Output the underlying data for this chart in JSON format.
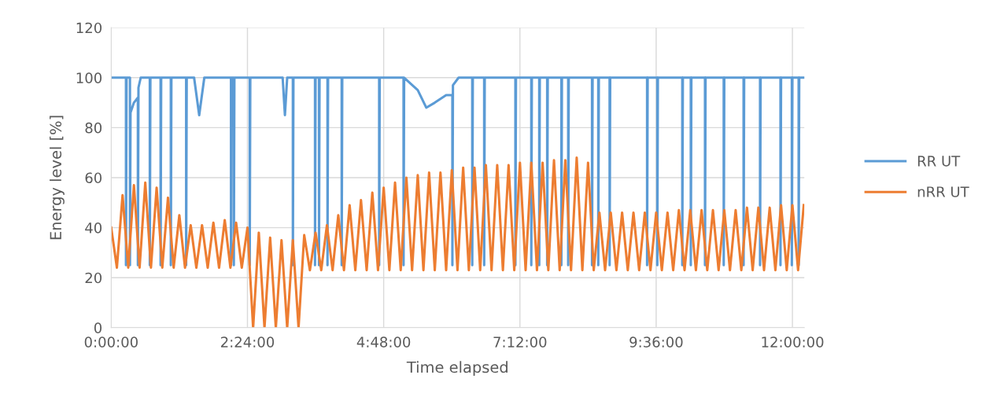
{
  "chart_data": {
    "type": "line",
    "xlabel": "Time elapsed",
    "ylabel": "Energy level [%]",
    "xlim": [
      0,
      12.21
    ],
    "xticks": [
      {
        "value": 0,
        "label": "0:00:00"
      },
      {
        "value": 2.4,
        "label": "2:24:00"
      },
      {
        "value": 4.8,
        "label": "4:48:00"
      },
      {
        "value": 7.2,
        "label": "7:12:00"
      },
      {
        "value": 9.6,
        "label": "9:36:00"
      },
      {
        "value": 12,
        "label": "12:00:00"
      }
    ],
    "ylim": [
      0,
      120
    ],
    "yticks": [
      0,
      20,
      40,
      60,
      80,
      100,
      120
    ],
    "grid": true,
    "legend": "right",
    "series": [
      {
        "name": "RR UT",
        "color": "#5b9bd5",
        "x": [
          0,
          0.26,
          0.26,
          0.27,
          0.33,
          0.33,
          0.34,
          0.4,
          0.47,
          0.47,
          0.48,
          0.52,
          0.68,
          0.68,
          0.69,
          0.87,
          0.87,
          0.88,
          1.05,
          1.05,
          1.06,
          1.32,
          1.32,
          1.33,
          1.46,
          1.55,
          1.64,
          2.11,
          2.11,
          2.12,
          2.16,
          2.16,
          2.17,
          2.44,
          2.44,
          2.45,
          3.02,
          3.06,
          3.1,
          3.2,
          3.2,
          3.21,
          3.59,
          3.59,
          3.6,
          3.66,
          3.66,
          3.67,
          3.81,
          3.81,
          3.82,
          4.06,
          4.06,
          4.07,
          4.72,
          4.72,
          4.73,
          5.15,
          5.15,
          5.16,
          5.4,
          5.55,
          5.7,
          5.9,
          6.01,
          6.01,
          6.02,
          6.12,
          6.36,
          6.36,
          6.37,
          6.57,
          6.57,
          6.58,
          7.12,
          7.12,
          7.13,
          7.4,
          7.4,
          7.41,
          7.54,
          7.54,
          7.55,
          7.68,
          7.68,
          7.69,
          7.93,
          7.93,
          7.94,
          8.05,
          8.05,
          8.06,
          8.47,
          8.47,
          8.48,
          8.58,
          8.58,
          8.59,
          8.78,
          8.78,
          8.79,
          9.44,
          9.44,
          9.45,
          9.62,
          9.62,
          9.63,
          10.06,
          10.06,
          10.07,
          10.21,
          10.21,
          10.22,
          10.46,
          10.46,
          10.47,
          10.79,
          10.79,
          10.8,
          11.14,
          11.14,
          11.15,
          11.43,
          11.43,
          11.44,
          11.79,
          11.79,
          11.8,
          11.99,
          11.99,
          12.0,
          12.11,
          12.11,
          12.12,
          12.21
        ],
        "values": [
          100,
          100,
          25,
          100,
          100,
          25,
          86,
          90,
          92,
          25,
          96,
          100,
          100,
          25,
          100,
          100,
          25,
          100,
          100,
          25,
          100,
          100,
          25,
          100,
          100,
          85,
          100,
          100,
          25,
          100,
          100,
          25,
          100,
          100,
          25,
          100,
          100,
          85,
          100,
          100,
          25,
          100,
          100,
          25,
          100,
          100,
          25,
          100,
          100,
          25,
          100,
          100,
          25,
          100,
          100,
          25,
          100,
          100,
          25,
          100,
          95,
          88,
          90,
          93,
          93,
          25,
          97,
          100,
          100,
          25,
          100,
          100,
          25,
          100,
          100,
          25,
          100,
          100,
          25,
          100,
          100,
          25,
          100,
          100,
          25,
          100,
          100,
          25,
          100,
          100,
          25,
          100,
          100,
          25,
          100,
          100,
          25,
          100,
          100,
          25,
          100,
          100,
          25,
          100,
          100,
          25,
          100,
          100,
          25,
          100,
          100,
          25,
          100,
          100,
          25,
          100,
          100,
          25,
          100,
          100,
          25,
          100,
          100,
          25,
          100,
          100,
          25,
          100,
          100,
          25,
          100,
          100,
          25,
          100,
          100
        ]
      },
      {
        "name": "nRR UT",
        "color": "#ed7d31",
        "x": [
          0,
          0.1,
          0.2,
          0.3,
          0.4,
          0.5,
          0.6,
          0.7,
          0.8,
          0.9,
          1.0,
          1.1,
          1.2,
          1.3,
          1.4,
          1.5,
          1.6,
          1.7,
          1.8,
          1.9,
          2.0,
          2.1,
          2.2,
          2.3,
          2.4,
          2.5,
          2.6,
          2.7,
          2.8,
          2.9,
          3.0,
          3.1,
          3.2,
          3.3,
          3.4,
          3.5,
          3.6,
          3.7,
          3.8,
          3.9,
          4.0,
          4.1,
          4.2,
          4.3,
          4.4,
          4.5,
          4.6,
          4.7,
          4.8,
          4.9,
          5.0,
          5.1,
          5.2,
          5.3,
          5.4,
          5.5,
          5.6,
          5.7,
          5.8,
          5.9,
          6.0,
          6.1,
          6.2,
          6.3,
          6.4,
          6.5,
          6.6,
          6.7,
          6.8,
          6.9,
          7.0,
          7.1,
          7.2,
          7.3,
          7.4,
          7.5,
          7.6,
          7.7,
          7.8,
          7.9,
          8.0,
          8.1,
          8.2,
          8.3,
          8.4,
          8.5,
          8.6,
          8.7,
          8.8,
          8.9,
          9.0,
          9.1,
          9.2,
          9.3,
          9.4,
          9.5,
          9.6,
          9.7,
          9.8,
          9.9,
          10.0,
          10.1,
          10.2,
          10.3,
          10.4,
          10.5,
          10.6,
          10.7,
          10.8,
          10.9,
          11.0,
          11.1,
          11.2,
          11.3,
          11.4,
          11.5,
          11.6,
          11.7,
          11.8,
          11.9,
          12.0,
          12.1,
          12.2
        ],
        "values": [
          40,
          24,
          53,
          24,
          57,
          24,
          58,
          24,
          56,
          24,
          52,
          24,
          45,
          24,
          41,
          24,
          41,
          24,
          42,
          24,
          43,
          24,
          42,
          24,
          40,
          0,
          38,
          0,
          36,
          0,
          35,
          0,
          35,
          0,
          37,
          23,
          38,
          23,
          41,
          23,
          45,
          23,
          49,
          23,
          51,
          23,
          54,
          23,
          56,
          23,
          58,
          23,
          60,
          23,
          61,
          23,
          62,
          23,
          62,
          23,
          63,
          23,
          64,
          23,
          64,
          23,
          65,
          23,
          65,
          23,
          65,
          23,
          66,
          23,
          66,
          23,
          66,
          23,
          67,
          23,
          67,
          23,
          68,
          23,
          66,
          23,
          46,
          23,
          46,
          23,
          46,
          23,
          46,
          23,
          46,
          23,
          46,
          23,
          46,
          23,
          47,
          23,
          47,
          23,
          47,
          23,
          47,
          23,
          47,
          23,
          47,
          23,
          48,
          23,
          48,
          23,
          48,
          23,
          49,
          23,
          49,
          23,
          49
        ]
      }
    ]
  }
}
